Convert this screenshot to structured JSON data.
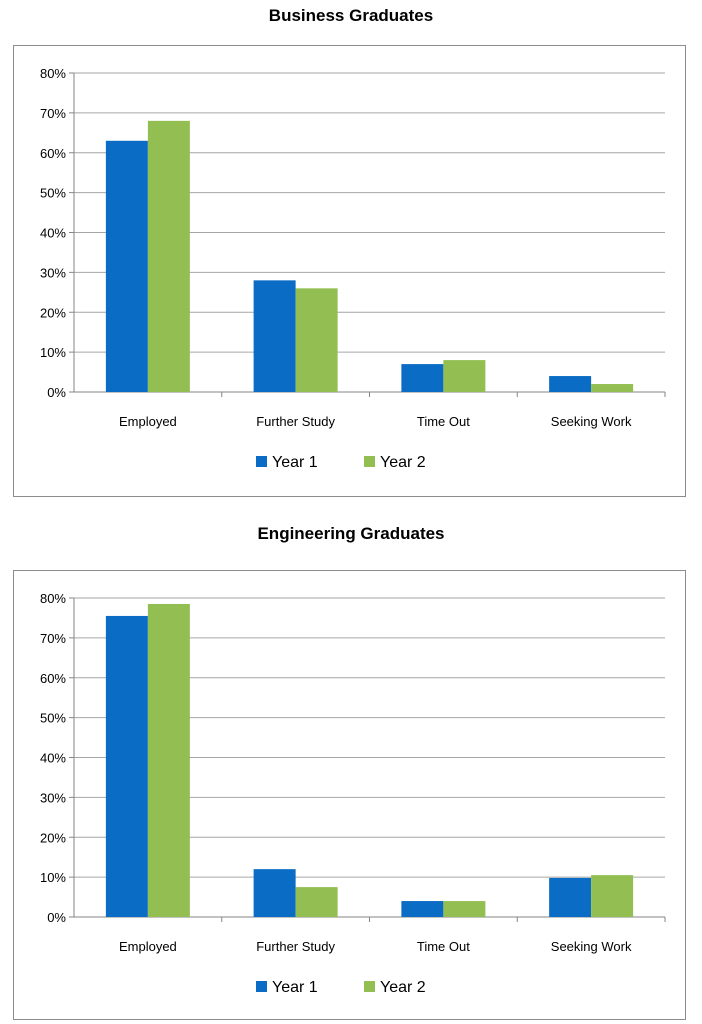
{
  "chart_data": [
    {
      "type": "bar",
      "title": "Business Graduates",
      "categories": [
        "Employed",
        "Further Study",
        "Time Out",
        "Seeking Work"
      ],
      "series": [
        {
          "name": "Year 1",
          "values": [
            63,
            28,
            7,
            4
          ]
        },
        {
          "name": "Year 2",
          "values": [
            68,
            26,
            8,
            2
          ]
        }
      ],
      "ylim": [
        0,
        80
      ],
      "yticks": [
        0,
        10,
        20,
        30,
        40,
        50,
        60,
        70,
        80
      ],
      "ytick_labels": [
        "0%",
        "10%",
        "20%",
        "30%",
        "40%",
        "50%",
        "60%",
        "70%",
        "80%"
      ],
      "xlabel": "",
      "ylabel": "",
      "grid": true,
      "legend": "bottom"
    },
    {
      "type": "bar",
      "title": "Engineering Graduates",
      "categories": [
        "Employed",
        "Further Study",
        "Time Out",
        "Seeking Work"
      ],
      "series": [
        {
          "name": "Year 1",
          "values": [
            75.5,
            12,
            4,
            9.8
          ]
        },
        {
          "name": "Year 2",
          "values": [
            78.5,
            7.5,
            4,
            10.5
          ]
        }
      ],
      "ylim": [
        0,
        80
      ],
      "yticks": [
        0,
        10,
        20,
        30,
        40,
        50,
        60,
        70,
        80
      ],
      "ytick_labels": [
        "0%",
        "10%",
        "20%",
        "30%",
        "40%",
        "50%",
        "60%",
        "70%",
        "80%"
      ],
      "xlabel": "",
      "ylabel": "",
      "grid": true,
      "legend": "bottom"
    }
  ],
  "colors": {
    "year1": "#0a6cc4",
    "year2": "#93be52",
    "grid": "#a6a6a6",
    "axis": "#868686"
  }
}
